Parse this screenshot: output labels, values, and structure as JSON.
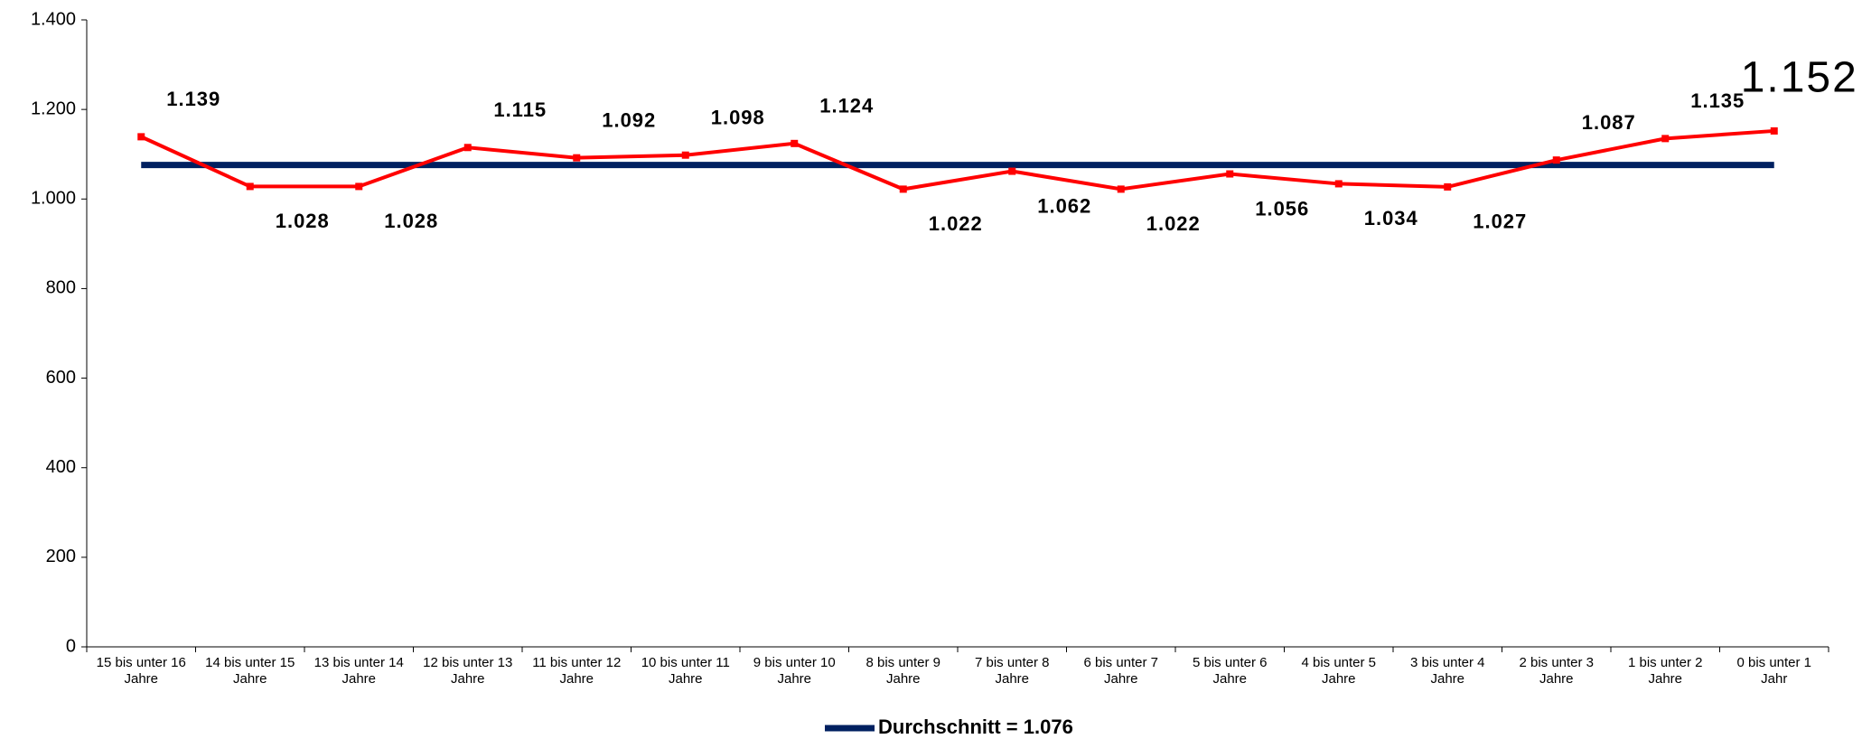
{
  "chart_data": {
    "type": "line",
    "categories": [
      "15 bis unter 16 Jahre",
      "14 bis unter 15 Jahre",
      "13 bis unter 14 Jahre",
      "12 bis unter 13 Jahre",
      "11 bis unter 12 Jahre",
      "10 bis unter 11 Jahre",
      "9 bis unter 10 Jahre",
      "8 bis unter 9 Jahre",
      "7 bis unter 8 Jahre",
      "6 bis unter 7 Jahre",
      "5 bis unter 6 Jahre",
      "4 bis unter 5 Jahre",
      "3 bis unter 4 Jahre",
      "2 bis unter 3 Jahre",
      "1 bis unter 2 Jahre",
      "0 bis unter 1 Jahr"
    ],
    "series": [
      {
        "color": "#ff0000",
        "values": [
          1139,
          1028,
          1028,
          1115,
          1092,
          1098,
          1124,
          1022,
          1062,
          1022,
          1056,
          1034,
          1027,
          1087,
          1135,
          1152
        ],
        "value_labels": [
          "1.139",
          "1.028",
          "1.028",
          "1.115",
          "1.092",
          "1.098",
          "1.124",
          "1.022",
          "1.062",
          "1.022",
          "1.056",
          "1.034",
          "1.027",
          "1.087",
          "1.135",
          "1.152"
        ]
      },
      {
        "name": "Durchschnitt = 1.076",
        "color": "#002060",
        "values": [
          1076,
          1076,
          1076,
          1076,
          1076,
          1076,
          1076,
          1076,
          1076,
          1076,
          1076,
          1076,
          1076,
          1076,
          1076,
          1076
        ]
      }
    ],
    "ylim": [
      0,
      1400
    ],
    "yticks": [
      0,
      200,
      400,
      600,
      800,
      {
        "value": 1000,
        "label": "1.000"
      },
      {
        "value": 1200,
        "label": "1.200"
      },
      {
        "value": 1400,
        "label": "1.400"
      }
    ],
    "grid": false
  }
}
